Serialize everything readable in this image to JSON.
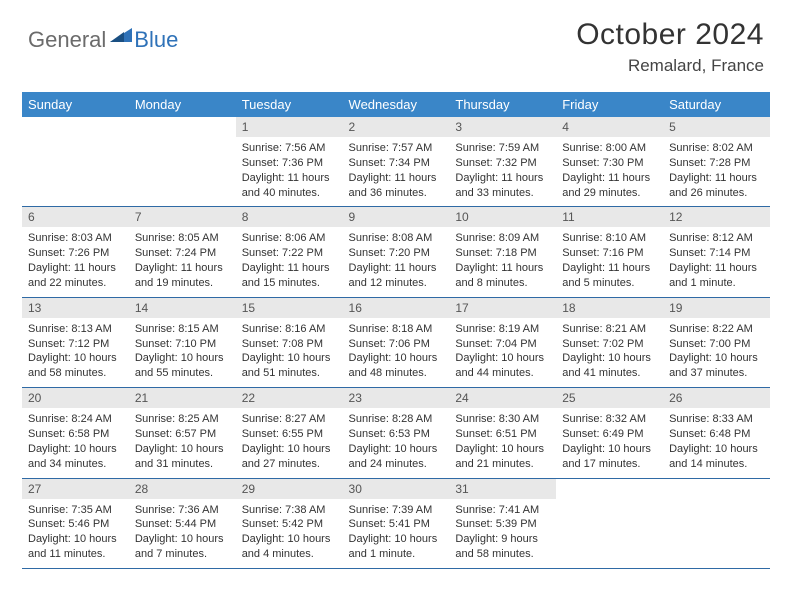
{
  "brand": {
    "part1": "General",
    "part2": "Blue",
    "logo_color": "#2f72b8"
  },
  "title": "October 2024",
  "location": "Remalard, France",
  "colors": {
    "header_bg": "#3a86c8",
    "daynum_bg": "#e8e8e8",
    "rule": "#2f6aa5"
  },
  "weekdays": [
    "Sunday",
    "Monday",
    "Tuesday",
    "Wednesday",
    "Thursday",
    "Friday",
    "Saturday"
  ],
  "weeks": [
    [
      null,
      null,
      {
        "n": "1",
        "r": "7:56 AM",
        "s": "7:36 PM",
        "d1": "Daylight: 11 hours",
        "d2": "and 40 minutes."
      },
      {
        "n": "2",
        "r": "7:57 AM",
        "s": "7:34 PM",
        "d1": "Daylight: 11 hours",
        "d2": "and 36 minutes."
      },
      {
        "n": "3",
        "r": "7:59 AM",
        "s": "7:32 PM",
        "d1": "Daylight: 11 hours",
        "d2": "and 33 minutes."
      },
      {
        "n": "4",
        "r": "8:00 AM",
        "s": "7:30 PM",
        "d1": "Daylight: 11 hours",
        "d2": "and 29 minutes."
      },
      {
        "n": "5",
        "r": "8:02 AM",
        "s": "7:28 PM",
        "d1": "Daylight: 11 hours",
        "d2": "and 26 minutes."
      }
    ],
    [
      {
        "n": "6",
        "r": "8:03 AM",
        "s": "7:26 PM",
        "d1": "Daylight: 11 hours",
        "d2": "and 22 minutes."
      },
      {
        "n": "7",
        "r": "8:05 AM",
        "s": "7:24 PM",
        "d1": "Daylight: 11 hours",
        "d2": "and 19 minutes."
      },
      {
        "n": "8",
        "r": "8:06 AM",
        "s": "7:22 PM",
        "d1": "Daylight: 11 hours",
        "d2": "and 15 minutes."
      },
      {
        "n": "9",
        "r": "8:08 AM",
        "s": "7:20 PM",
        "d1": "Daylight: 11 hours",
        "d2": "and 12 minutes."
      },
      {
        "n": "10",
        "r": "8:09 AM",
        "s": "7:18 PM",
        "d1": "Daylight: 11 hours",
        "d2": "and 8 minutes."
      },
      {
        "n": "11",
        "r": "8:10 AM",
        "s": "7:16 PM",
        "d1": "Daylight: 11 hours",
        "d2": "and 5 minutes."
      },
      {
        "n": "12",
        "r": "8:12 AM",
        "s": "7:14 PM",
        "d1": "Daylight: 11 hours",
        "d2": "and 1 minute."
      }
    ],
    [
      {
        "n": "13",
        "r": "8:13 AM",
        "s": "7:12 PM",
        "d1": "Daylight: 10 hours",
        "d2": "and 58 minutes."
      },
      {
        "n": "14",
        "r": "8:15 AM",
        "s": "7:10 PM",
        "d1": "Daylight: 10 hours",
        "d2": "and 55 minutes."
      },
      {
        "n": "15",
        "r": "8:16 AM",
        "s": "7:08 PM",
        "d1": "Daylight: 10 hours",
        "d2": "and 51 minutes."
      },
      {
        "n": "16",
        "r": "8:18 AM",
        "s": "7:06 PM",
        "d1": "Daylight: 10 hours",
        "d2": "and 48 minutes."
      },
      {
        "n": "17",
        "r": "8:19 AM",
        "s": "7:04 PM",
        "d1": "Daylight: 10 hours",
        "d2": "and 44 minutes."
      },
      {
        "n": "18",
        "r": "8:21 AM",
        "s": "7:02 PM",
        "d1": "Daylight: 10 hours",
        "d2": "and 41 minutes."
      },
      {
        "n": "19",
        "r": "8:22 AM",
        "s": "7:00 PM",
        "d1": "Daylight: 10 hours",
        "d2": "and 37 minutes."
      }
    ],
    [
      {
        "n": "20",
        "r": "8:24 AM",
        "s": "6:58 PM",
        "d1": "Daylight: 10 hours",
        "d2": "and 34 minutes."
      },
      {
        "n": "21",
        "r": "8:25 AM",
        "s": "6:57 PM",
        "d1": "Daylight: 10 hours",
        "d2": "and 31 minutes."
      },
      {
        "n": "22",
        "r": "8:27 AM",
        "s": "6:55 PM",
        "d1": "Daylight: 10 hours",
        "d2": "and 27 minutes."
      },
      {
        "n": "23",
        "r": "8:28 AM",
        "s": "6:53 PM",
        "d1": "Daylight: 10 hours",
        "d2": "and 24 minutes."
      },
      {
        "n": "24",
        "r": "8:30 AM",
        "s": "6:51 PM",
        "d1": "Daylight: 10 hours",
        "d2": "and 21 minutes."
      },
      {
        "n": "25",
        "r": "8:32 AM",
        "s": "6:49 PM",
        "d1": "Daylight: 10 hours",
        "d2": "and 17 minutes."
      },
      {
        "n": "26",
        "r": "8:33 AM",
        "s": "6:48 PM",
        "d1": "Daylight: 10 hours",
        "d2": "and 14 minutes."
      }
    ],
    [
      {
        "n": "27",
        "r": "7:35 AM",
        "s": "5:46 PM",
        "d1": "Daylight: 10 hours",
        "d2": "and 11 minutes."
      },
      {
        "n": "28",
        "r": "7:36 AM",
        "s": "5:44 PM",
        "d1": "Daylight: 10 hours",
        "d2": "and 7 minutes."
      },
      {
        "n": "29",
        "r": "7:38 AM",
        "s": "5:42 PM",
        "d1": "Daylight: 10 hours",
        "d2": "and 4 minutes."
      },
      {
        "n": "30",
        "r": "7:39 AM",
        "s": "5:41 PM",
        "d1": "Daylight: 10 hours",
        "d2": "and 1 minute."
      },
      {
        "n": "31",
        "r": "7:41 AM",
        "s": "5:39 PM",
        "d1": "Daylight: 9 hours",
        "d2": "and 58 minutes."
      },
      null,
      null
    ]
  ],
  "labels": {
    "sunrise": "Sunrise:",
    "sunset": "Sunset:"
  }
}
